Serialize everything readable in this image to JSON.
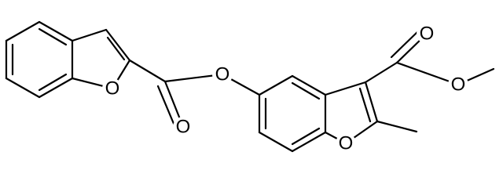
{
  "atoms": [
    {
      "label": "O"
    },
    {
      "label": "O"
    },
    {
      "label": "O"
    },
    {
      "label": "O"
    },
    {
      "label": "O"
    },
    {
      "label": "O"
    }
  ]
}
